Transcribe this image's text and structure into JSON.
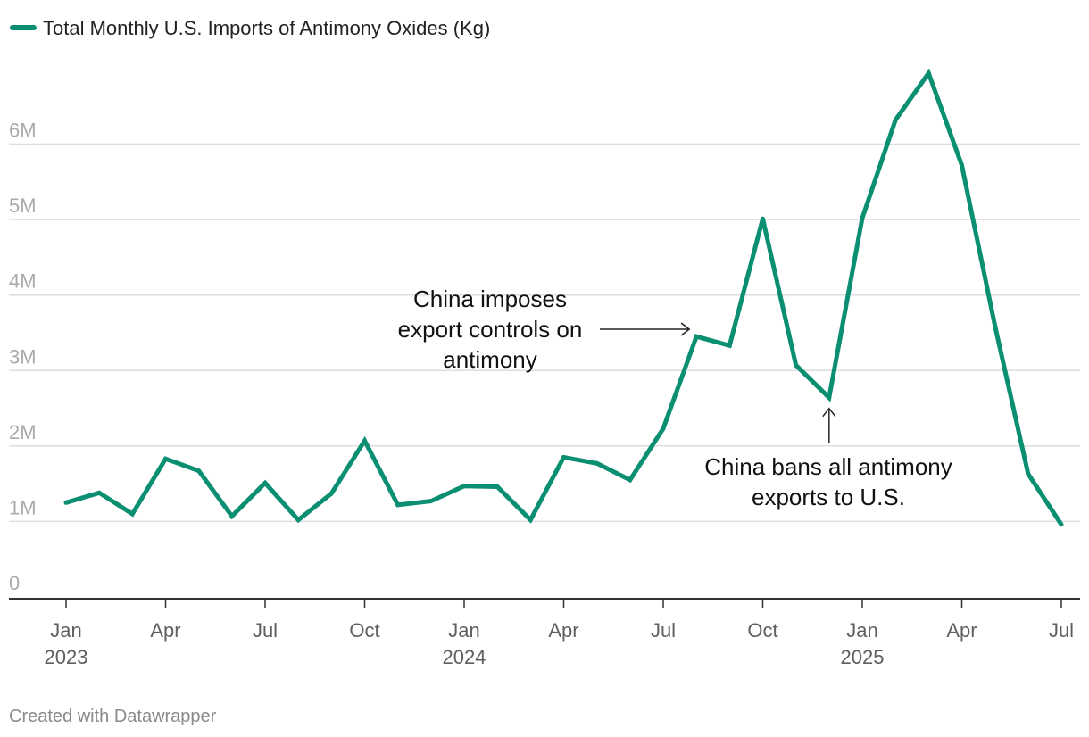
{
  "chart_data": {
    "type": "line",
    "legend": {
      "label": "Total Monthly U.S. Imports of Antimony Oxides (Kg)",
      "placement": "top-left"
    },
    "colors": {
      "series": "#0a8f72",
      "grid": "#dedede",
      "axis": "#333333",
      "tick_label": "#aaaaaa",
      "footer": "#8a8a8a"
    },
    "grid": true,
    "y_range": [
      0,
      7200000
    ],
    "y_ticks": [
      {
        "value": 0,
        "label": "0"
      },
      {
        "value": 1000000,
        "label": "1M"
      },
      {
        "value": 2000000,
        "label": "2M"
      },
      {
        "value": 3000000,
        "label": "3M"
      },
      {
        "value": 4000000,
        "label": "4M"
      },
      {
        "value": 5000000,
        "label": "5M"
      },
      {
        "value": 6000000,
        "label": "6M"
      }
    ],
    "x_range": [
      "2023-01",
      "2025-07"
    ],
    "x_ticks": [
      {
        "date": "2023-01",
        "label": "Jan",
        "year": "2023"
      },
      {
        "date": "2023-04",
        "label": "Apr",
        "year": ""
      },
      {
        "date": "2023-07",
        "label": "Jul",
        "year": ""
      },
      {
        "date": "2023-10",
        "label": "Oct",
        "year": ""
      },
      {
        "date": "2024-01",
        "label": "Jan",
        "year": "2024"
      },
      {
        "date": "2024-04",
        "label": "Apr",
        "year": ""
      },
      {
        "date": "2024-07",
        "label": "Jul",
        "year": ""
      },
      {
        "date": "2024-10",
        "label": "Oct",
        "year": ""
      },
      {
        "date": "2025-01",
        "label": "Jan",
        "year": "2025"
      },
      {
        "date": "2025-04",
        "label": "Apr",
        "year": ""
      },
      {
        "date": "2025-07",
        "label": "Jul",
        "year": ""
      }
    ],
    "series": [
      {
        "name": "Total Monthly U.S. Imports of Antimony Oxides (Kg)",
        "points": [
          {
            "x": "2023-01",
            "y": 1250000
          },
          {
            "x": "2023-02",
            "y": 1380000
          },
          {
            "x": "2023-03",
            "y": 1100000
          },
          {
            "x": "2023-04",
            "y": 1830000
          },
          {
            "x": "2023-05",
            "y": 1670000
          },
          {
            "x": "2023-06",
            "y": 1070000
          },
          {
            "x": "2023-07",
            "y": 1510000
          },
          {
            "x": "2023-08",
            "y": 1020000
          },
          {
            "x": "2023-09",
            "y": 1370000
          },
          {
            "x": "2023-10",
            "y": 2070000
          },
          {
            "x": "2023-11",
            "y": 1220000
          },
          {
            "x": "2023-12",
            "y": 1270000
          },
          {
            "x": "2024-01",
            "y": 1470000
          },
          {
            "x": "2024-02",
            "y": 1460000
          },
          {
            "x": "2024-03",
            "y": 1020000
          },
          {
            "x": "2024-04",
            "y": 1850000
          },
          {
            "x": "2024-05",
            "y": 1770000
          },
          {
            "x": "2024-06",
            "y": 1550000
          },
          {
            "x": "2024-07",
            "y": 2230000
          },
          {
            "x": "2024-08",
            "y": 3450000
          },
          {
            "x": "2024-09",
            "y": 3330000
          },
          {
            "x": "2024-10",
            "y": 5010000
          },
          {
            "x": "2024-11",
            "y": 3070000
          },
          {
            "x": "2024-12",
            "y": 2640000
          },
          {
            "x": "2025-01",
            "y": 5020000
          },
          {
            "x": "2025-02",
            "y": 6320000
          },
          {
            "x": "2025-03",
            "y": 6940000
          },
          {
            "x": "2025-04",
            "y": 5720000
          },
          {
            "x": "2025-05",
            "y": 3590000
          },
          {
            "x": "2025-06",
            "y": 1630000
          },
          {
            "x": "2025-07",
            "y": 960000
          }
        ]
      }
    ],
    "annotations": [
      {
        "name": "export-controls",
        "lines": [
          "China imposes",
          "export controls on",
          "antimony"
        ],
        "target": {
          "x": "2024-08",
          "y": 3450000
        },
        "arrow": "from-left"
      },
      {
        "name": "export-ban",
        "lines": [
          "China bans all antimony",
          "exports to U.S."
        ],
        "target": {
          "x": "2024-12",
          "y": 2640000
        },
        "arrow": "from-below"
      }
    ],
    "footer": "Created with Datawrapper"
  }
}
